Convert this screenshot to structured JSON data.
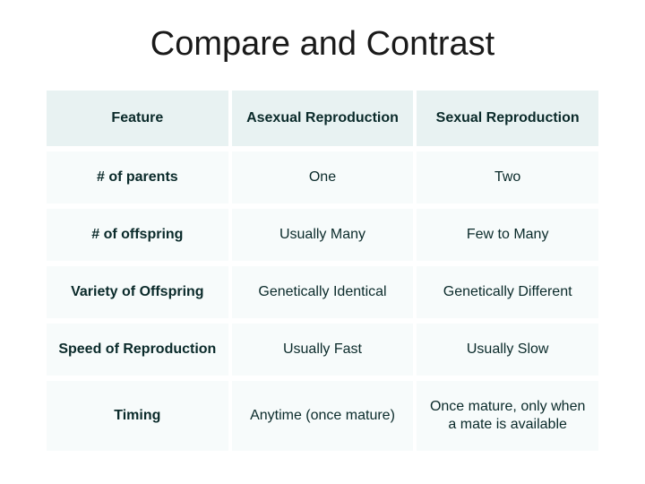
{
  "title": "Compare and Contrast",
  "table": {
    "type": "table",
    "columns": [
      "Feature",
      "Asexual Reproduction",
      "Sexual Reproduction"
    ],
    "rows": [
      [
        "# of parents",
        "One",
        "Two"
      ],
      [
        "# of offspring",
        "Usually Many",
        "Few to Many"
      ],
      [
        "Variety of Offspring",
        "Genetically Identical",
        "Genetically Different"
      ],
      [
        "Speed of Reproduction",
        "Usually Fast",
        "Usually Slow"
      ],
      [
        "Timing",
        "Anytime (once mature)",
        "Once mature, only when a mate is available"
      ]
    ],
    "header_bg": "#e8f2f2",
    "cell_bg": "#f7fbfb",
    "text_color": "#0a2a2a",
    "title_color": "#1a1a1a",
    "title_fontsize": 38,
    "header_fontsize": 16,
    "cell_fontsize": 16,
    "row_spacing": 6,
    "col_spacing": 4
  }
}
